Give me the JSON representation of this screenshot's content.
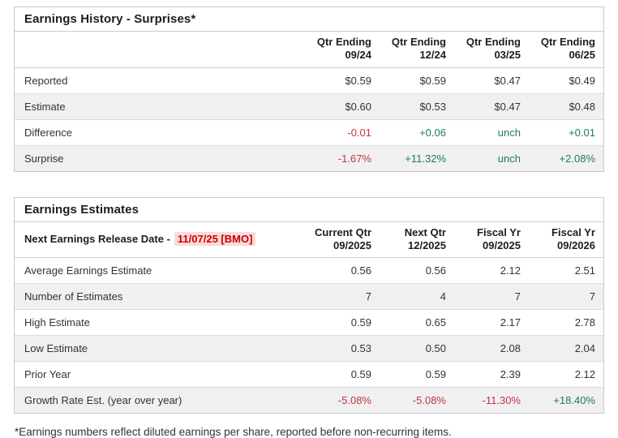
{
  "colors": {
    "positive": "#1e7b63",
    "negative": "#bf3545",
    "release_text": "#cc0000",
    "release_bg": "#fadbdb"
  },
  "history": {
    "title": "Earnings History - Surprises*",
    "columns": [
      {
        "period": "Qtr Ending",
        "date": "09/24"
      },
      {
        "period": "Qtr Ending",
        "date": "12/24"
      },
      {
        "period": "Qtr Ending",
        "date": "03/25"
      },
      {
        "period": "Qtr Ending",
        "date": "06/25"
      }
    ],
    "rows": [
      {
        "label": "Reported",
        "values": [
          "$0.59",
          "$0.59",
          "$0.47",
          "$0.49"
        ],
        "tones": [
          "n",
          "n",
          "n",
          "n"
        ]
      },
      {
        "label": "Estimate",
        "values": [
          "$0.60",
          "$0.53",
          "$0.47",
          "$0.48"
        ],
        "tones": [
          "n",
          "n",
          "n",
          "n"
        ]
      },
      {
        "label": "Difference",
        "values": [
          "-0.01",
          "+0.06",
          "unch",
          "+0.01"
        ],
        "tones": [
          "neg",
          "pos",
          "pos",
          "pos"
        ]
      },
      {
        "label": "Surprise",
        "values": [
          "-1.67%",
          "+11.32%",
          "unch",
          "+2.08%"
        ],
        "tones": [
          "neg",
          "pos",
          "pos",
          "pos"
        ]
      }
    ]
  },
  "estimates": {
    "title": "Earnings Estimates",
    "release_label": "Next Earnings Release Date -",
    "release_date": "11/07/25 [BMO]",
    "columns": [
      {
        "period": "Current Qtr",
        "date": "09/2025"
      },
      {
        "period": "Next Qtr",
        "date": "12/2025"
      },
      {
        "period": "Fiscal Yr",
        "date": "09/2025"
      },
      {
        "period": "Fiscal Yr",
        "date": "09/2026"
      }
    ],
    "rows": [
      {
        "label": "Average Earnings Estimate",
        "values": [
          "0.56",
          "0.56",
          "2.12",
          "2.51"
        ],
        "tones": [
          "n",
          "n",
          "n",
          "n"
        ]
      },
      {
        "label": "Number of Estimates",
        "values": [
          "7",
          "4",
          "7",
          "7"
        ],
        "tones": [
          "n",
          "n",
          "n",
          "n"
        ]
      },
      {
        "label": "High Estimate",
        "values": [
          "0.59",
          "0.65",
          "2.17",
          "2.78"
        ],
        "tones": [
          "n",
          "n",
          "n",
          "n"
        ]
      },
      {
        "label": "Low Estimate",
        "values": [
          "0.53",
          "0.50",
          "2.08",
          "2.04"
        ],
        "tones": [
          "n",
          "n",
          "n",
          "n"
        ]
      },
      {
        "label": "Prior Year",
        "values": [
          "0.59",
          "0.59",
          "2.39",
          "2.12"
        ],
        "tones": [
          "n",
          "n",
          "n",
          "n"
        ]
      },
      {
        "label": "Growth Rate Est. (year over year)",
        "values": [
          "-5.08%",
          "-5.08%",
          "-11.30%",
          "+18.40%"
        ],
        "tones": [
          "neg",
          "neg",
          "neg",
          "pos"
        ]
      }
    ]
  },
  "footnote": "*Earnings numbers reflect diluted earnings per share, reported before non-recurring items."
}
